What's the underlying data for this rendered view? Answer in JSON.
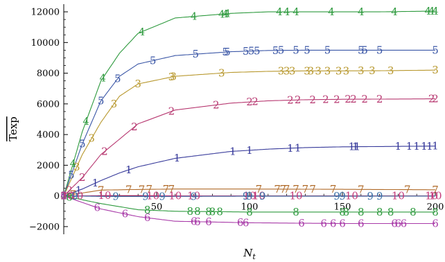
{
  "chart_data": {
    "type": "line",
    "xlabel": "N_t",
    "ylabel": "Texp",
    "xlim": [
      0,
      200
    ],
    "ylim": [
      -2500,
      12500
    ],
    "x_ticks": [
      50,
      100,
      150,
      200
    ],
    "y_ticks": [
      -2000,
      0,
      2000,
      4000,
      6000,
      8000,
      10000,
      12000
    ],
    "grid": false,
    "legend": "none",
    "series": [
      {
        "name": "4",
        "color": "#2e9a3e",
        "x": [
          0,
          10,
          20,
          30,
          40,
          60,
          90,
          110,
          130,
          150,
          170,
          200
        ],
        "y": [
          0,
          4200,
          7500,
          9300,
          10600,
          11600,
          11900,
          12000,
          12000,
          12000,
          12000,
          12050
        ],
        "labels": [
          0,
          5,
          12,
          21,
          42,
          70,
          85,
          87,
          88,
          116,
          120,
          125,
          144,
          160,
          178,
          196,
          198,
          200
        ]
      },
      {
        "name": "5",
        "color": "#3a56a6",
        "x": [
          0,
          10,
          20,
          30,
          40,
          60,
          90,
          110,
          130,
          150,
          170,
          200
        ],
        "y": [
          0,
          3400,
          6200,
          7800,
          8600,
          9150,
          9400,
          9480,
          9500,
          9500,
          9500,
          9500
        ],
        "labels": [
          0,
          4,
          10,
          20,
          29,
          48,
          71,
          87,
          88,
          98,
          101,
          104,
          114,
          117,
          125,
          131,
          142,
          160,
          162,
          170,
          200
        ]
      },
      {
        "name": "3",
        "color": "#b8982e",
        "x": [
          0,
          10,
          20,
          30,
          40,
          60,
          90,
          110,
          130,
          150,
          170,
          200
        ],
        "y": [
          0,
          2700,
          4800,
          6500,
          7300,
          7800,
          8050,
          8120,
          8150,
          8150,
          8160,
          8200
        ],
        "labels": [
          0,
          7,
          15,
          27,
          40,
          58,
          59,
          85,
          117,
          120,
          123,
          131,
          133,
          137,
          142,
          148,
          152,
          160,
          166,
          176,
          200
        ]
      },
      {
        "name": "2",
        "color": "#b83a72",
        "x": [
          0,
          10,
          20,
          30,
          40,
          60,
          90,
          110,
          130,
          150,
          170,
          200
        ],
        "y": [
          0,
          1200,
          2700,
          3700,
          4700,
          5600,
          6050,
          6200,
          6270,
          6300,
          6310,
          6330
        ],
        "labels": [
          0,
          3,
          10,
          22,
          38,
          58,
          82,
          100,
          103,
          122,
          126,
          134,
          141,
          147,
          153,
          156,
          162,
          170,
          198,
          200
        ]
      },
      {
        "name": "1",
        "color": "#36399a",
        "x": [
          0,
          10,
          20,
          30,
          40,
          60,
          90,
          110,
          130,
          150,
          170,
          200
        ],
        "y": [
          0,
          450,
          1000,
          1500,
          1900,
          2450,
          2900,
          3050,
          3150,
          3200,
          3220,
          3250
        ],
        "labels": [
          0,
          8,
          17,
          35,
          61,
          91,
          100,
          122,
          126,
          155,
          157,
          158,
          180,
          186,
          190,
          194,
          197,
          200
        ]
      },
      {
        "name": "7",
        "color": "#b06a28",
        "x": [
          0,
          20,
          40,
          60,
          100,
          150,
          200
        ],
        "y": [
          0,
          380,
          420,
          450,
          450,
          430,
          400
        ],
        "labels": [
          5,
          20,
          35,
          42,
          46,
          55,
          58,
          105,
          115,
          118,
          120,
          125,
          130,
          134,
          145,
          160,
          185,
          200
        ]
      },
      {
        "name": "10",
        "color": "#c43a7a",
        "x": [
          0,
          20,
          40,
          60,
          100,
          150,
          200
        ],
        "y": [
          0,
          20,
          20,
          10,
          0,
          0,
          0
        ],
        "labels": [
          2,
          7,
          22,
          48,
          60,
          70,
          100,
          105,
          125,
          155,
          180,
          198,
          200
        ]
      },
      {
        "name": "9",
        "color": "#3a6fa6",
        "x": [
          0,
          20,
          40,
          60,
          100,
          150,
          200
        ],
        "y": [
          0,
          -30,
          -40,
          -30,
          -20,
          -20,
          -10
        ],
        "labels": [
          6,
          28,
          44,
          53,
          70,
          98,
          100,
          107,
          147,
          150,
          165,
          170
        ]
      },
      {
        "name": "8",
        "color": "#2e9a3e",
        "x": [
          0,
          20,
          40,
          60,
          100,
          150,
          200
        ],
        "y": [
          0,
          -500,
          -900,
          -1000,
          -1050,
          -1050,
          -1050
        ],
        "labels": [
          3,
          45,
          68,
          72,
          78,
          80,
          84,
          100,
          125,
          150,
          152,
          160,
          170,
          176,
          188,
          200
        ]
      },
      {
        "name": "6",
        "color": "#a83aa8",
        "x": [
          0,
          20,
          40,
          60,
          100,
          150,
          200
        ],
        "y": [
          0,
          -850,
          -1350,
          -1650,
          -1750,
          -1800,
          -1800
        ],
        "labels": [
          0,
          18,
          33,
          45,
          70,
          72,
          78,
          95,
          98,
          128,
          140,
          145,
          150,
          160,
          178,
          180,
          183,
          200
        ]
      }
    ]
  }
}
